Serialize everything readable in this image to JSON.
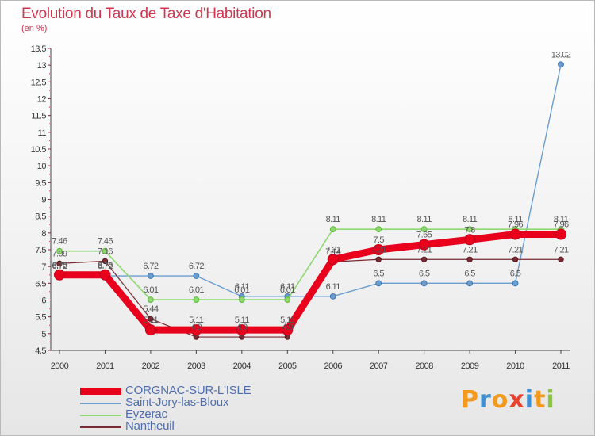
{
  "header": {
    "title": "Evolution du Taux de Taxe d'Habitation",
    "unit": "(en %)"
  },
  "chart_data": {
    "type": "line",
    "title": "Evolution du Taux de Taxe d'Habitation",
    "ylabel": "(en %)",
    "xlabel": "",
    "x": [
      "2000",
      "2001",
      "2002",
      "2003",
      "2004",
      "2005",
      "2006",
      "2007",
      "2008",
      "2009",
      "2010",
      "2011"
    ],
    "ylim": [
      4.5,
      13.5
    ],
    "yticks": [
      "4.5",
      "5",
      "5.5",
      "6",
      "6.5",
      "7",
      "7.5",
      "8",
      "8.5",
      "9",
      "9.5",
      "10",
      "10.5",
      "11",
      "11.5",
      "12",
      "12.5",
      "13",
      "13.5"
    ],
    "grid": false,
    "legend_position": "bottom-left",
    "series": [
      {
        "name": "CORGNAC-SUR-L'ISLE",
        "color": "#e8001c",
        "values": [
          6.75,
          6.75,
          5.11,
          5.11,
          5.11,
          5.11,
          7.21,
          7.5,
          7.65,
          7.8,
          7.96,
          7.96
        ],
        "labels": [
          "6.75",
          "6.75",
          "5.11",
          "5.11",
          "5.11",
          "5.11",
          "7.21",
          "7.5",
          "7.65",
          "7.8",
          "7.96",
          "7.96"
        ]
      },
      {
        "name": "Saint-Jory-las-Bloux",
        "color": "#6b9ecf",
        "values": [
          6.72,
          6.72,
          6.72,
          6.72,
          6.11,
          6.11,
          6.11,
          6.5,
          6.5,
          6.5,
          6.5,
          13.02
        ],
        "labels": [
          "6.72",
          "6.72",
          "6.72",
          "6.72",
          "6.11",
          "6.11",
          "6.11",
          "6.5",
          "6.5",
          "6.5",
          "6.5",
          "13.02"
        ]
      },
      {
        "name": "Eyzerac",
        "color": "#8fd870",
        "values": [
          7.46,
          7.46,
          6.01,
          6.01,
          6.01,
          6.01,
          8.11,
          8.11,
          8.11,
          8.11,
          8.11,
          8.11
        ],
        "labels": [
          "7.46",
          "7.46",
          "6.01",
          "6.01",
          "6.01",
          "6.01",
          "8.11",
          "8.11",
          "8.11",
          "8.11",
          "8.11",
          "8.11"
        ]
      },
      {
        "name": "Nantheuil",
        "color": "#7a2a33",
        "values": [
          7.09,
          7.16,
          5.44,
          4.9,
          4.9,
          4.9,
          7.14,
          7.21,
          7.21,
          7.21,
          7.21,
          7.21
        ],
        "labels": [
          "7.09",
          "7.16",
          "5.44",
          "4.9",
          "4.9",
          "4.9",
          "7.14",
          "7.21",
          "7.21",
          "7.21",
          "7.21",
          "7.21"
        ]
      }
    ]
  },
  "brand": {
    "text": "Proxiti",
    "colors": [
      "#f39a1e",
      "#3f8fd2",
      "#f39a1e",
      "#e8412c",
      "#3f8fd2",
      "#f39a1e",
      "#8cc63f"
    ]
  }
}
